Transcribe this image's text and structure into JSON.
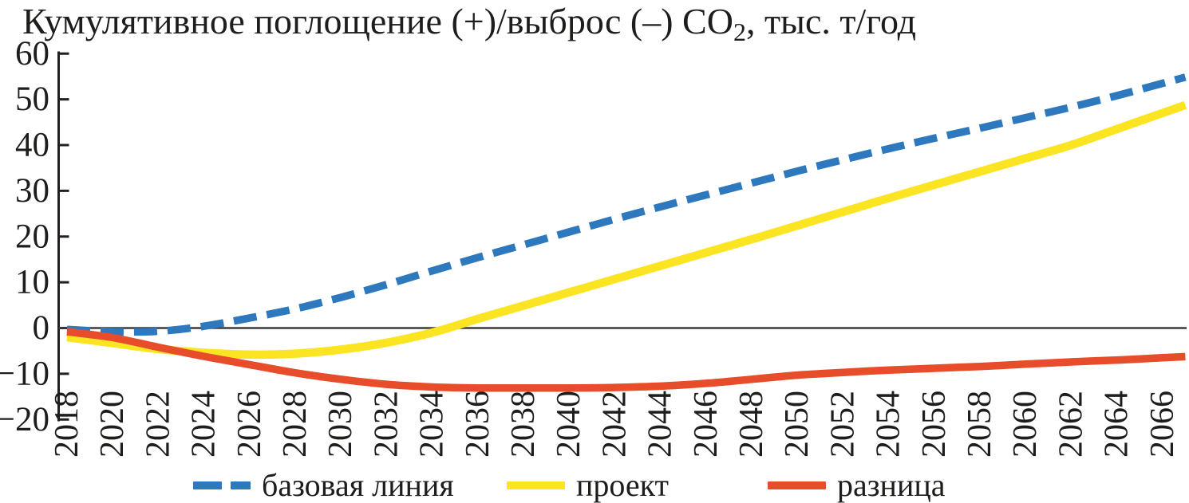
{
  "title": {
    "text_main": "Кумулятивное поглощение (+)/выброс (–) CO",
    "subscript": "2",
    "text_tail": ", тыс. т/год"
  },
  "colors": {
    "baseline": "#2E78BE",
    "project": "#FBE422",
    "difference": "#E74C2B",
    "axis": "#231F20",
    "zero_line": "#3C3C3B",
    "text": "#1D1D1B"
  },
  "chart_data": {
    "type": "line",
    "x": [
      2018,
      2020,
      2022,
      2024,
      2026,
      2028,
      2030,
      2032,
      2034,
      2036,
      2038,
      2040,
      2042,
      2044,
      2046,
      2048,
      2050,
      2052,
      2054,
      2056,
      2058,
      2060,
      2062,
      2064,
      2066
    ],
    "series": [
      {
        "id": "baseline",
        "name": "базовая линия",
        "color": "#2E78BE",
        "style": "dashed",
        "values": [
          -0.3,
          -0.8,
          -0.7,
          0.4,
          2.2,
          4.2,
          6.7,
          9.5,
          12.5,
          15.4,
          18.2,
          21.0,
          23.8,
          26.5,
          29.1,
          31.7,
          34.3,
          36.8,
          39.2,
          41.5,
          43.7,
          46.0,
          48.3,
          50.8,
          53.5
        ]
      },
      {
        "id": "project",
        "name": "проект",
        "color": "#FBE422",
        "style": "solid",
        "values": [
          -2.0,
          -3.3,
          -4.6,
          -5.4,
          -5.8,
          -5.6,
          -4.7,
          -3.2,
          -1.0,
          2.0,
          4.9,
          7.8,
          10.7,
          13.6,
          16.5,
          19.4,
          22.4,
          25.4,
          28.4,
          31.3,
          34.2,
          37.1,
          40.0,
          43.5,
          47.0
        ]
      },
      {
        "id": "difference",
        "name": "разница",
        "color": "#E74C2B",
        "style": "solid",
        "values": [
          -0.8,
          -2.1,
          -4.2,
          -6.2,
          -8.0,
          -9.8,
          -11.2,
          -12.3,
          -12.9,
          -13.1,
          -13.1,
          -13.1,
          -13.0,
          -12.7,
          -12.1,
          -11.2,
          -10.3,
          -9.7,
          -9.2,
          -8.8,
          -8.4,
          -7.9,
          -7.4,
          -7.0,
          -6.5
        ]
      }
    ],
    "y_ticks": [
      60,
      50,
      40,
      30,
      20,
      10,
      0,
      -10,
      -20
    ],
    "ylim": [
      -20,
      60
    ],
    "xlim": [
      2018,
      2067
    ],
    "grid": false,
    "zero_line": true,
    "legend_position": "bottom"
  }
}
